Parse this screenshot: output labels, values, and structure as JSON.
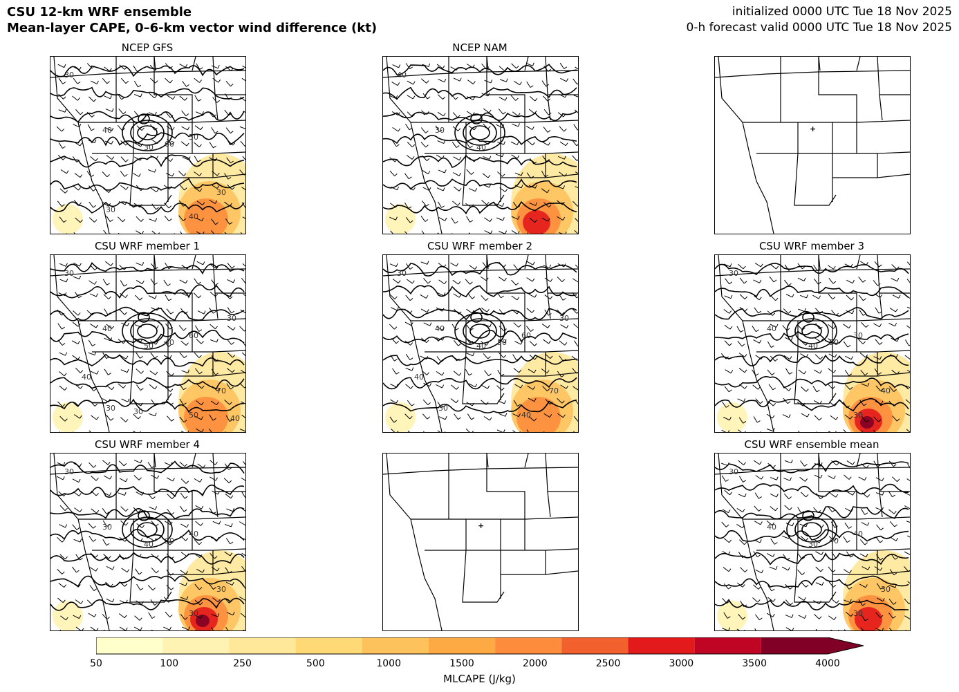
{
  "header": {
    "title_line1": "CSU 12-km WRF ensemble",
    "title_line2": "Mean-layer CAPE, 0–6-km vector wind difference (kt)",
    "init_line": "initialized 0000 UTC Tue 18 Nov 2025",
    "valid_line": "0-h forecast valid 0000 UTC Tue 18 Nov 2025"
  },
  "panels": [
    {
      "title": "NCEP GFS",
      "has_data": true,
      "cape_level": 2,
      "contour_labels": [
        "30",
        "40",
        "30",
        "60",
        "50",
        "30",
        "40",
        "30"
      ]
    },
    {
      "title": "NCEP NAM",
      "has_data": true,
      "cape_level": 3,
      "contour_labels": [
        "40",
        "30",
        "40"
      ]
    },
    {
      "title": "",
      "has_data": false,
      "cape_level": 0,
      "contour_labels": []
    },
    {
      "title": "CSU WRF member 1",
      "has_data": true,
      "cape_level": 2,
      "contour_labels": [
        "30",
        "40",
        "50",
        "40",
        "60",
        "70",
        "50",
        "30",
        "40",
        "30",
        "30",
        "40"
      ]
    },
    {
      "title": "CSU WRF member 2",
      "has_data": true,
      "cape_level": 2,
      "contour_labels": [
        "30",
        "40",
        "40",
        "50",
        "60",
        "70",
        "40",
        "30",
        "40",
        "30"
      ]
    },
    {
      "title": "CSU WRF member 3",
      "has_data": true,
      "cape_level": 4,
      "contour_labels": [
        "30",
        "40",
        "40",
        "50",
        "30",
        "40",
        "30"
      ]
    },
    {
      "title": "CSU WRF member 4",
      "has_data": true,
      "cape_level": 4,
      "contour_labels": [
        "30",
        "30",
        "40",
        "30",
        "40",
        "30",
        "30"
      ]
    },
    {
      "title": "",
      "has_data": false,
      "cape_level": 0,
      "contour_labels": []
    },
    {
      "title": "CSU WRF ensemble mean",
      "has_data": true,
      "cape_level": 3,
      "contour_labels": [
        "30",
        "40",
        "30",
        "40",
        "40",
        "30",
        "30"
      ]
    }
  ],
  "colorbar": {
    "label": "MLCAPE (J/kg)",
    "ticks": [
      "50",
      "100",
      "250",
      "500",
      "1000",
      "1500",
      "2000",
      "2500",
      "3000",
      "3500",
      "4000"
    ],
    "colors": [
      "#ffffcc",
      "#fff3b3",
      "#ffe89a",
      "#fed976",
      "#fec25d",
      "#fdaa45",
      "#fd8d3c",
      "#f2602e",
      "#e31a1c",
      "#c00423",
      "#800026"
    ]
  }
}
